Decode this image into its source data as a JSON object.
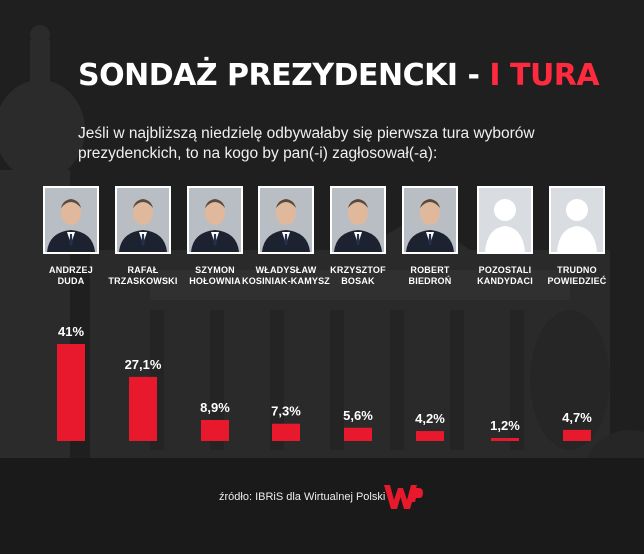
{
  "title": {
    "main": "SONDAŻ PREZYDENCKI - ",
    "accent": "I TURA"
  },
  "subtitle": "Jeśli w najbliższą niedzielę odbywałaby się pierwsza tura wyborów prezydenckich, to na kogo by pan(-i) zagłosował(-a):",
  "candidates": [
    {
      "line1": "ANDRZEJ",
      "line2": "DUDA",
      "photo_icon": "portrait-icon"
    },
    {
      "line1": "RAFAŁ",
      "line2": "TRZASKOWSKI",
      "photo_icon": "portrait-icon"
    },
    {
      "line1": "SZYMON",
      "line2": "HOŁOWNIA",
      "photo_icon": "portrait-icon"
    },
    {
      "line1": "WŁADYSŁAW",
      "line2": "KOSINIAK-KAMYSZ",
      "photo_icon": "portrait-icon"
    },
    {
      "line1": "KRZYSZTOF",
      "line2": "BOSAK",
      "photo_icon": "portrait-icon"
    },
    {
      "line1": "ROBERT",
      "line2": "BIEDROŃ",
      "photo_icon": "portrait-icon"
    },
    {
      "line1": "POZOSTALI",
      "line2": "KANDYDACI",
      "photo_icon": "silhouette-icon"
    },
    {
      "line1": "TRUDNO",
      "line2": "POWIEDZIEĆ",
      "photo_icon": "silhouette-icon"
    }
  ],
  "chart_data": {
    "type": "bar",
    "categories": [
      "ANDRZEJ DUDA",
      "RAFAŁ TRZASKOWSKI",
      "SZYMON HOŁOWNIA",
      "WŁADYSŁAW KOSINIAK-KAMYSZ",
      "KRZYSZTOF BOSAK",
      "ROBERT BIEDROŃ",
      "POZOSTALI KANDYDACI",
      "TRUDNO POWIEDZIEĆ"
    ],
    "values": [
      41,
      27.1,
      8.9,
      7.3,
      5.6,
      4.2,
      1.2,
      4.7
    ],
    "labels": [
      "41%",
      "27,1%",
      "8,9%",
      "7,3%",
      "5,6%",
      "4,2%",
      "1,2%",
      "4,7%"
    ],
    "title": "SONDAŻ PREZYDENCKI - I TURA",
    "xlabel": "",
    "ylabel": "",
    "ylim": [
      0,
      41
    ],
    "grid": false,
    "legend": "none",
    "bar_color": "#e8192c"
  },
  "source": "źródło: IBRiS dla Wirtualnej Polski",
  "logo": {
    "name": "wp-logo",
    "color": "#e8192c"
  }
}
